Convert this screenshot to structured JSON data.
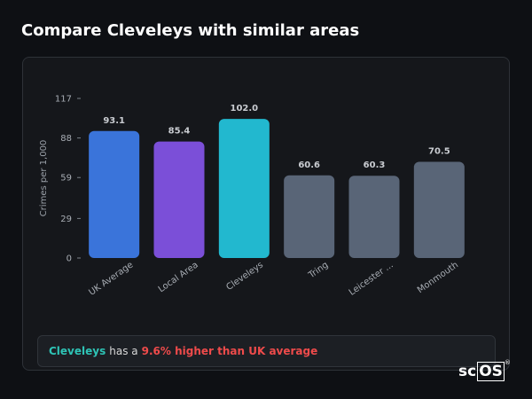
{
  "title": "Compare Cleveleys with similar areas",
  "chart_data": {
    "type": "bar",
    "categories": [
      "UK Average",
      "Local Area",
      "Cleveleys",
      "Tring",
      "Leicester ...",
      "Monmouth"
    ],
    "values": [
      93.1,
      85.4,
      102.0,
      60.6,
      60.3,
      70.5
    ],
    "value_labels": [
      "93.1",
      "85.4",
      "102.0",
      "60.6",
      "60.3",
      "70.5"
    ],
    "colors": [
      "#3a74da",
      "#7b4fd8",
      "#22b8cf",
      "#596577",
      "#596577",
      "#596577"
    ],
    "y_label": "Crimes per 1,000",
    "ylim": [
      0,
      117
    ],
    "yticks": [
      0,
      29,
      59,
      88,
      117
    ]
  },
  "summary": {
    "area": "Cleveleys",
    "text": "has a",
    "highlight": "9.6% higher than UK average"
  },
  "logo": {
    "prefix": "sc",
    "boxed": "OS",
    "mark": "®"
  }
}
